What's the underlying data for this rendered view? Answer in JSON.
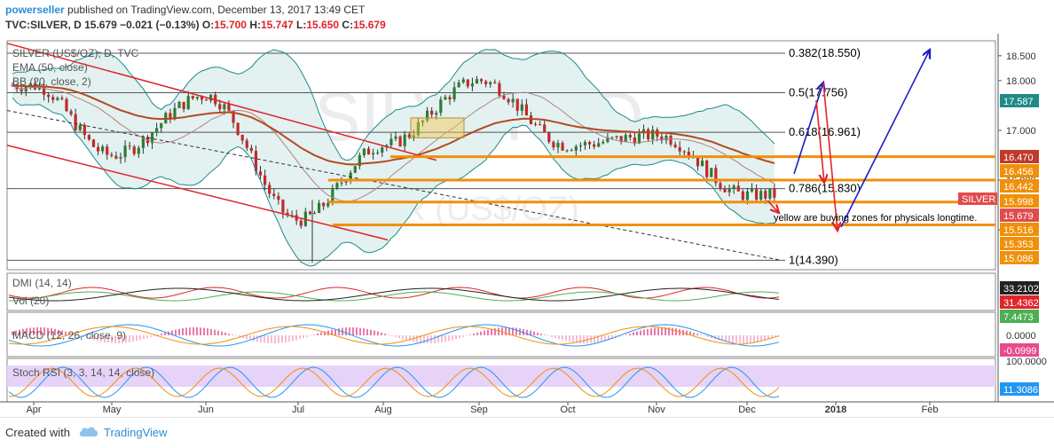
{
  "header": {
    "user": "powerseller",
    "published": "published on TradingView.com, December 13, 2017 13:49 CET",
    "symbol": "TVC:SILVER, D",
    "price": "15.679",
    "change": "−0.021 (−0.13%)",
    "o_label": "O:",
    "o": "15.700",
    "h_label": "H:",
    "h": "15.747",
    "l_label": "L:",
    "l": "15.650",
    "c_label": "C:",
    "c": "15.679"
  },
  "legend": {
    "main": "SILVER (US$/OZ), D, TVC",
    "ema": "EMA (50, close)",
    "bb": "BB (20, close, 2)"
  },
  "watermark": {
    "big": "SILVER, D",
    "small": "SILVER (US$/OZ)"
  },
  "fib": [
    {
      "label": "0.382(18.550)",
      "price": 18.55
    },
    {
      "label": "0.5(17.756)",
      "price": 17.756
    },
    {
      "label": "0.618(16.961)",
      "price": 16.961
    },
    {
      "label": "0.786(15.830)",
      "price": 15.83
    },
    {
      "label": "1(14.390)",
      "price": 14.39
    }
  ],
  "annotation": "yellow are buying zones for physicals longtime.",
  "price_axis": [
    "18.500",
    "18.000",
    "17.000",
    "16.000",
    "15.000"
  ],
  "price_tags": [
    {
      "text": "17.587",
      "color": "#1e8a8a"
    },
    {
      "text": "16.470",
      "color": "#c0392b"
    },
    {
      "text": "16.456",
      "color": "#f0900a"
    },
    {
      "text": "16.442",
      "color": "#f0900a"
    },
    {
      "text": "15.998",
      "color": "#f0900a"
    },
    {
      "text": "15.679",
      "color": "#e24b4b"
    },
    {
      "text": "15.516",
      "color": "#f0900a"
    },
    {
      "text": "15.353",
      "color": "#f0900a"
    },
    {
      "text": "15.086",
      "color": "#f0900a"
    }
  ],
  "silver_tag": "SILVER",
  "panels": {
    "dmi": {
      "label": "DMI (14, 14)",
      "tags": [
        {
          "text": "33.2102",
          "color": "#222"
        },
        {
          "text": "31.4362",
          "color": "#e0242a"
        },
        {
          "text": "7.4473",
          "color": "#4caf50"
        }
      ]
    },
    "vol": {
      "label": "Vol (20)"
    },
    "macd": {
      "label": "MACD (12, 26, close, 9)",
      "axis": "0.0000",
      "tag": "-0.0999",
      "tag_color": "#e64c8c"
    },
    "stoch": {
      "label": "Stoch RSI (3, 3, 14, 14, close)",
      "axis": "100.0000",
      "tag": "11.3086",
      "tag_color": "#2196f3"
    }
  },
  "time_axis": [
    "Apr",
    "May",
    "Jun",
    "Jul",
    "Aug",
    "Sep",
    "Oct",
    "Nov",
    "Dec",
    "2018",
    "Feb"
  ],
  "footer": {
    "created": "Created with",
    "brand": "TradingView"
  },
  "colors": {
    "fib_line": "#555",
    "channel": "#e0242a",
    "support": "#f0900a",
    "ema": "#b34a1e",
    "bb": "#1e8a8a",
    "bb_fill": "#e3f1f1",
    "arrow_blue": "#1c1cc8",
    "arrow_red": "#e0242a",
    "stoch_fill": "#e6d3f7"
  },
  "chart_data": {
    "type": "candlestick",
    "title": "SILVER (US$/OZ), D, TVC",
    "ylim": [
      14.2,
      18.8
    ],
    "key_points": [
      {
        "x": "Apr",
        "y": 17.9
      },
      {
        "x": "May",
        "y": 16.5
      },
      {
        "x": "Jun",
        "y": 17.7
      },
      {
        "x": "Jul",
        "y": 15.2
      },
      {
        "x": "Aug",
        "y": 16.7
      },
      {
        "x": "Sep",
        "y": 18.0
      },
      {
        "x": "Oct",
        "y": 16.7
      },
      {
        "x": "Nov",
        "y": 16.9
      },
      {
        "x": "Dec",
        "y": 15.7
      }
    ]
  }
}
